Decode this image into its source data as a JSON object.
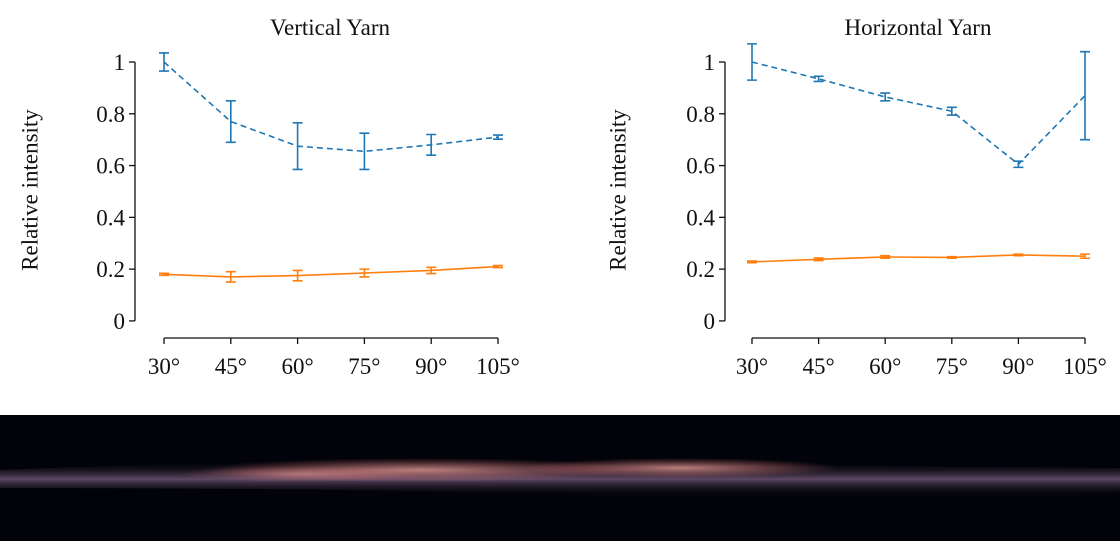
{
  "chart_data": [
    {
      "type": "line",
      "title": "Vertical Yarn",
      "y_label": "Relative intensity",
      "categories": [
        "30°",
        "45°",
        "60°",
        "75°",
        "90°",
        "105°"
      ],
      "ylim": [
        -0.066,
        1.085
      ],
      "yticks": [
        0,
        0.2,
        0.4,
        0.6,
        0.8,
        1
      ],
      "series": [
        {
          "color": "#1f77b4",
          "linestyle": "dashed",
          "values": [
            1.0,
            0.77,
            0.675,
            0.655,
            0.68,
            0.71
          ],
          "errors": [
            0.035,
            0.08,
            0.09,
            0.07,
            0.04,
            0.008
          ]
        },
        {
          "color": "#ff7f0e",
          "linestyle": "solid",
          "values": [
            0.18,
            0.17,
            0.175,
            0.185,
            0.195,
            0.21
          ],
          "errors": [
            0.004,
            0.02,
            0.02,
            0.015,
            0.012,
            0.004
          ]
        }
      ]
    },
    {
      "type": "line",
      "title": "Horizontal Yarn",
      "y_label": "Relative intensity",
      "categories": [
        "30°",
        "45°",
        "60°",
        "75°",
        "90°",
        "105°"
      ],
      "ylim": [
        -0.066,
        1.085
      ],
      "yticks": [
        0,
        0.2,
        0.4,
        0.6,
        0.8,
        1
      ],
      "series": [
        {
          "color": "#1f77b4",
          "linestyle": "dashed",
          "values": [
            1.0,
            0.935,
            0.865,
            0.81,
            0.605,
            0.87
          ],
          "errors": [
            0.07,
            0.01,
            0.015,
            0.015,
            0.012,
            0.17
          ]
        },
        {
          "color": "#ff7f0e",
          "linestyle": "solid",
          "values": [
            0.228,
            0.238,
            0.247,
            0.245,
            0.255,
            0.25
          ],
          "errors": [
            0.003,
            0.005,
            0.005,
            0.003,
            0.003,
            0.008
          ]
        }
      ]
    }
  ]
}
